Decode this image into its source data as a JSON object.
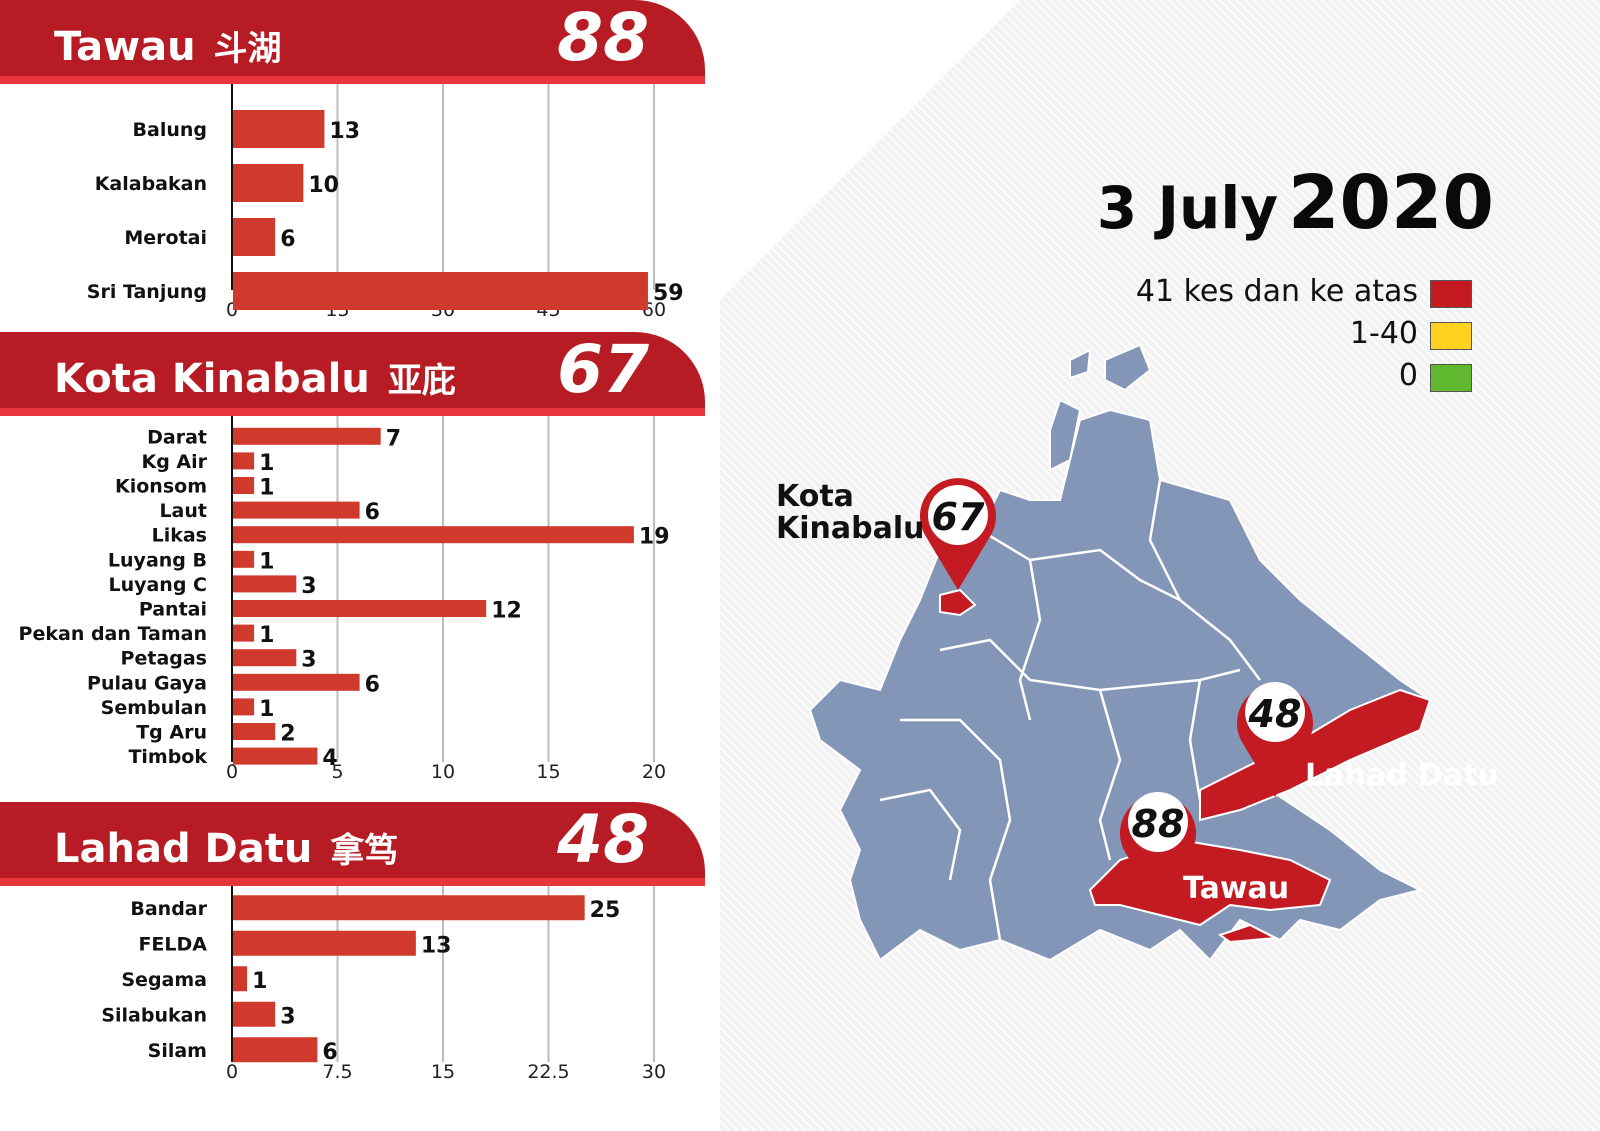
{
  "date": {
    "day_month": "3 July",
    "year": "2020"
  },
  "legend": [
    {
      "label": "41 kes dan ke atas",
      "color": "#c41a22"
    },
    {
      "label": "1-40",
      "color": "#ffd21f"
    },
    {
      "label": "0",
      "color": "#5fb82e"
    }
  ],
  "colors": {
    "header_red": "#b71c24",
    "bar_red": "#d03a2c",
    "map_blue": "#8396b8",
    "map_red": "#c41a22"
  },
  "map": {
    "districts": [
      {
        "name": "Kota Kinabalu",
        "line1": "Kota",
        "line2": "Kinabalu",
        "cases": "67"
      },
      {
        "name": "Lahad Datu",
        "cases": "48"
      },
      {
        "name": "Tawau",
        "cases": "88"
      }
    ]
  },
  "chart_data": [
    {
      "type": "bar",
      "orientation": "horizontal",
      "title": "Tawau",
      "title_cn": "斗湖",
      "total": "88",
      "categories": [
        "Balung",
        "Kalabakan",
        "Merotai",
        "Sri Tanjung"
      ],
      "values": [
        13,
        10,
        6,
        59
      ],
      "xlim": [
        0,
        60
      ],
      "ticks": [
        "0",
        "15",
        "30",
        "45",
        "60"
      ],
      "grid": true
    },
    {
      "type": "bar",
      "orientation": "horizontal",
      "title": "Kota Kinabalu",
      "title_cn": "亚庇",
      "total": "67",
      "categories": [
        "Darat",
        "Kg Air",
        "Kionsom",
        "Laut",
        "Likas",
        "Luyang B",
        "Luyang C",
        "Pantai",
        "Pekan dan Taman",
        "Petagas",
        "Pulau Gaya",
        "Sembulan",
        "Tg Aru",
        "Timbok"
      ],
      "values": [
        7,
        1,
        1,
        6,
        19,
        1,
        3,
        12,
        1,
        3,
        6,
        1,
        2,
        4
      ],
      "xlim": [
        0,
        20
      ],
      "ticks": [
        "0",
        "5",
        "10",
        "15",
        "20"
      ],
      "grid": true
    },
    {
      "type": "bar",
      "orientation": "horizontal",
      "title": "Lahad Datu",
      "title_cn": "拿笃",
      "total": "48",
      "categories": [
        "Bandar",
        "FELDA",
        "Segama",
        "Silabukan",
        "Silam"
      ],
      "values": [
        25,
        13,
        1,
        3,
        6
      ],
      "xlim": [
        0,
        30
      ],
      "ticks": [
        "0",
        "7.5",
        "15",
        "22.5",
        "30"
      ],
      "grid": true
    }
  ]
}
